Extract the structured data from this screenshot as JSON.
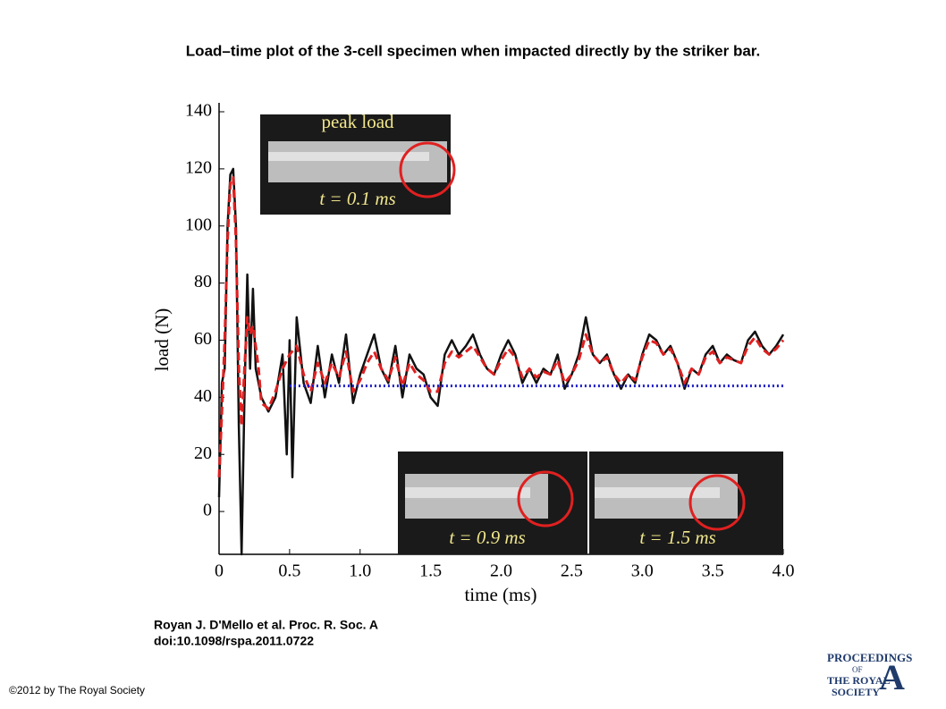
{
  "chart_data": {
    "type": "line",
    "title": "Load–time plot of the 3-cell specimen when impacted directly by the striker bar.",
    "xlabel": "time (ms)",
    "ylabel": "load (N)",
    "xlim": [
      0,
      4
    ],
    "ylim": [
      -15,
      140
    ],
    "xticks": [
      0,
      0.5,
      {
        "value": 1,
        "label": "1.0"
      },
      1.5,
      {
        "value": 2,
        "label": "2.0"
      },
      2.5,
      {
        "value": 3,
        "label": "3.0"
      },
      3.5,
      {
        "value": 4,
        "label": "4.0"
      }
    ],
    "yticks": [
      0,
      20,
      40,
      60,
      80,
      100,
      120,
      140
    ],
    "series": [
      {
        "color": "#111111",
        "style": "solid",
        "x": [
          0,
          0.02,
          0.04,
          0.06,
          0.08,
          0.1,
          0.12,
          0.14,
          0.16,
          0.18,
          0.2,
          0.22,
          0.24,
          0.26,
          0.28,
          0.3,
          0.35,
          0.4,
          0.45,
          0.48,
          0.5,
          0.52,
          0.55,
          0.6,
          0.65,
          0.7,
          0.75,
          0.8,
          0.85,
          0.9,
          0.95,
          1,
          1.05,
          1.1,
          1.15,
          1.2,
          1.25,
          1.3,
          1.35,
          1.4,
          1.45,
          1.5,
          1.55,
          1.6,
          1.65,
          1.7,
          1.75,
          1.8,
          1.85,
          1.9,
          1.95,
          2,
          2.05,
          2.1,
          2.15,
          2.2,
          2.25,
          2.3,
          2.35,
          2.4,
          2.45,
          2.5,
          2.55,
          2.6,
          2.65,
          2.7,
          2.75,
          2.8,
          2.85,
          2.9,
          2.95,
          3,
          3.05,
          3.1,
          3.15,
          3.2,
          3.25,
          3.3,
          3.35,
          3.4,
          3.45,
          3.5,
          3.55,
          3.6,
          3.65,
          3.7,
          3.75,
          3.8,
          3.85,
          3.9,
          3.95,
          4
        ],
        "values": [
          5,
          45,
          50,
          100,
          118,
          120,
          100,
          30,
          -15,
          40,
          83,
          50,
          78,
          50,
          45,
          40,
          35,
          40,
          55,
          20,
          60,
          12,
          68,
          45,
          38,
          58,
          40,
          55,
          45,
          62,
          38,
          48,
          55,
          62,
          50,
          45,
          58,
          40,
          55,
          50,
          48,
          40,
          37,
          55,
          60,
          55,
          58,
          62,
          55,
          50,
          48,
          55,
          60,
          55,
          45,
          50,
          45,
          50,
          48,
          55,
          43,
          48,
          55,
          68,
          55,
          52,
          55,
          48,
          43,
          48,
          45,
          55,
          62,
          60,
          55,
          58,
          52,
          43,
          50,
          48,
          55,
          58,
          52,
          55,
          53,
          52,
          60,
          63,
          58,
          55,
          58,
          62
        ]
      },
      {
        "color": "#e02020",
        "style": "dashed",
        "x": [
          0,
          0.02,
          0.04,
          0.06,
          0.08,
          0.1,
          0.12,
          0.14,
          0.16,
          0.18,
          0.2,
          0.22,
          0.24,
          0.26,
          0.28,
          0.3,
          0.35,
          0.4,
          0.45,
          0.5,
          0.55,
          0.6,
          0.65,
          0.7,
          0.75,
          0.8,
          0.85,
          0.9,
          0.95,
          1,
          1.05,
          1.1,
          1.15,
          1.2,
          1.25,
          1.3,
          1.35,
          1.4,
          1.45,
          1.5,
          1.55,
          1.6,
          1.65,
          1.7,
          1.75,
          1.8,
          1.85,
          1.9,
          1.95,
          2,
          2.05,
          2.1,
          2.15,
          2.2,
          2.25,
          2.3,
          2.35,
          2.4,
          2.45,
          2.5,
          2.55,
          2.6,
          2.65,
          2.7,
          2.75,
          2.8,
          2.85,
          2.9,
          2.95,
          3,
          3.05,
          3.1,
          3.15,
          3.2,
          3.25,
          3.3,
          3.35,
          3.4,
          3.45,
          3.5,
          3.55,
          3.6,
          3.65,
          3.7,
          3.75,
          3.8,
          3.85,
          3.9,
          3.95,
          4
        ],
        "values": [
          12,
          35,
          60,
          95,
          115,
          117,
          95,
          50,
          30,
          50,
          68,
          62,
          65,
          58,
          50,
          38,
          36,
          42,
          50,
          55,
          58,
          48,
          42,
          52,
          45,
          52,
          47,
          56,
          42,
          46,
          52,
          56,
          50,
          46,
          54,
          44,
          52,
          48,
          46,
          42,
          42,
          52,
          56,
          54,
          56,
          58,
          54,
          50,
          48,
          53,
          57,
          54,
          47,
          50,
          47,
          49,
          48,
          53,
          45,
          48,
          53,
          62,
          55,
          52,
          54,
          48,
          45,
          48,
          46,
          54,
          60,
          59,
          55,
          57,
          52,
          45,
          50,
          48,
          54,
          56,
          52,
          54,
          53,
          52,
          58,
          61,
          57,
          55,
          57,
          60
        ]
      },
      {
        "color": "#1a1ac8",
        "style": "dotted",
        "x": [
          0.5,
          4
        ],
        "values": [
          44,
          44
        ]
      }
    ],
    "insets": [
      {
        "top": "peak load",
        "bottom": "t = 0.1 ms"
      },
      {
        "bottom": "t = 0.9 ms"
      },
      {
        "bottom": "t = 1.5 ms"
      }
    ]
  },
  "citation": [
    "Royan J. D'Mello et al. Proc. R. Soc. A",
    "doi:10.1098/rspa.2011.0722"
  ],
  "copyright": "©2012 by The Royal Society",
  "logo": [
    "PROCEEDINGS",
    "OF",
    "THE ROYAL",
    "SOCIETY",
    "A"
  ]
}
